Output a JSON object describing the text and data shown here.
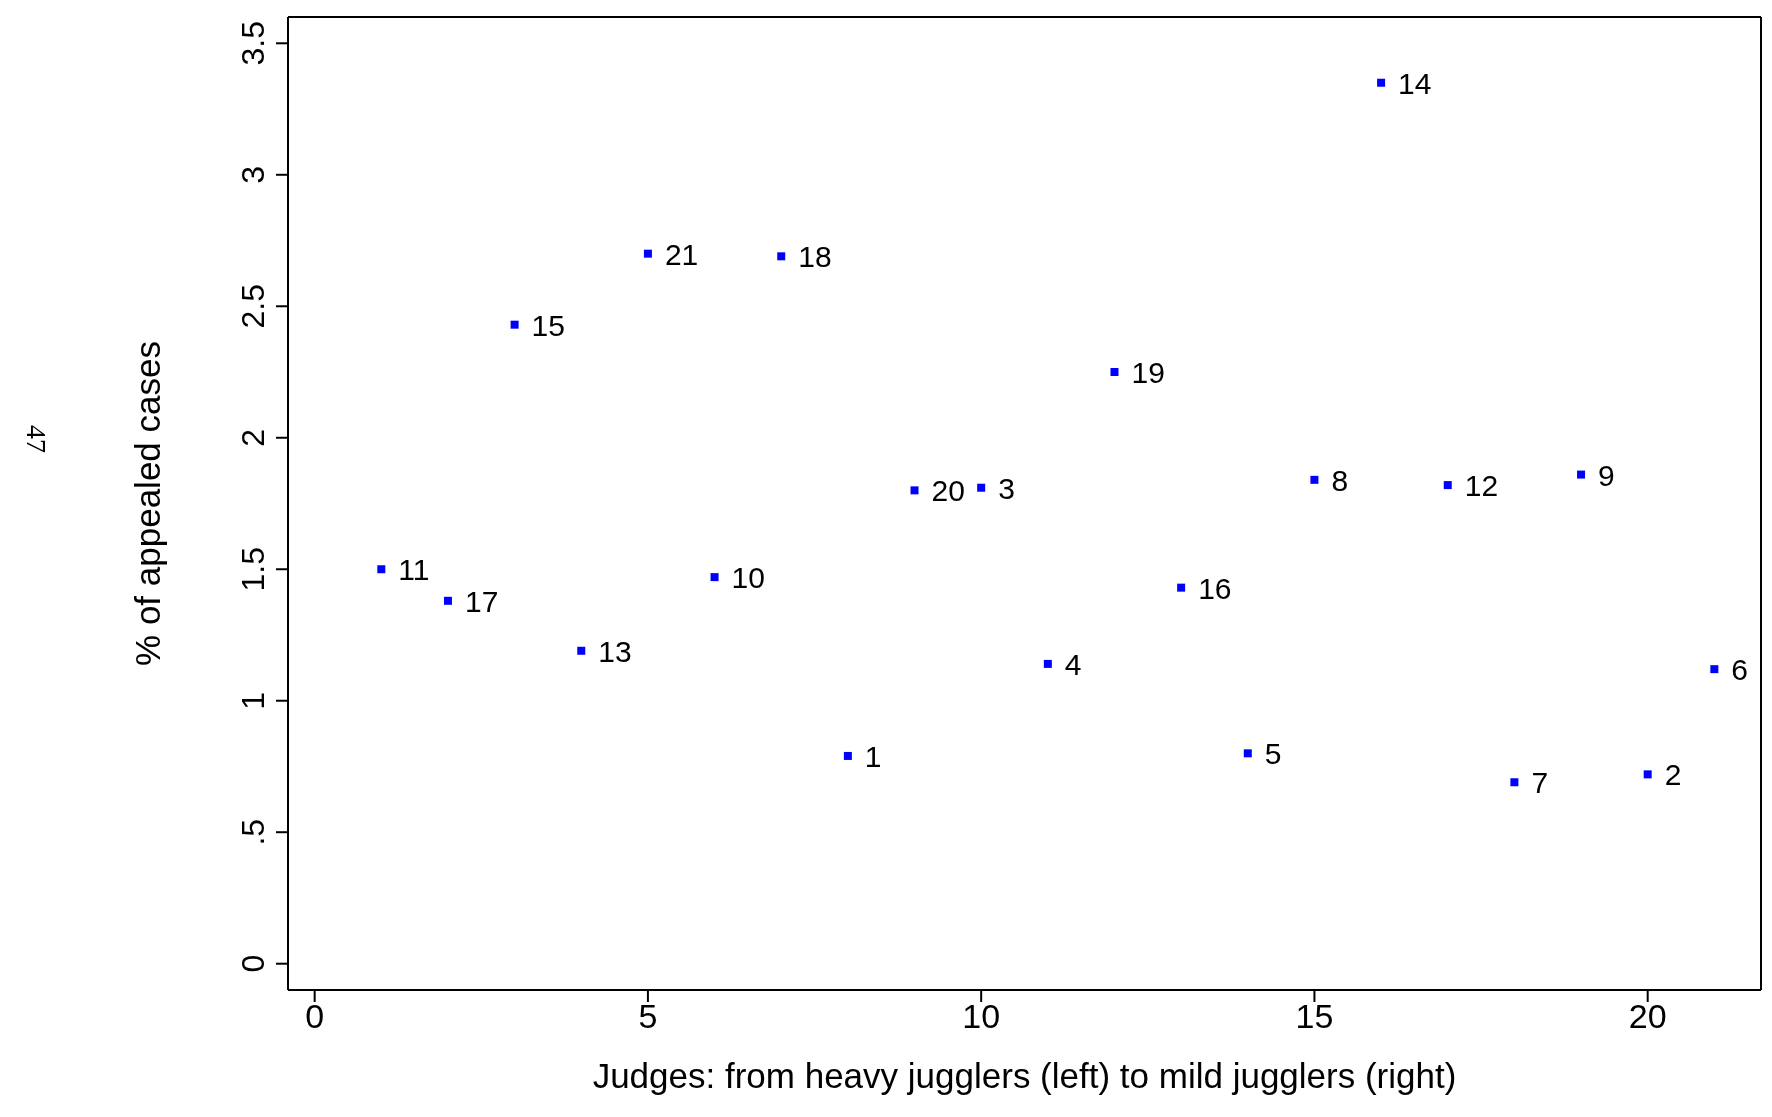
{
  "chart_data": {
    "type": "scatter",
    "xlabel": "Judges: from heavy jugglers (left) to mild jugglers (right)",
    "ylabel": "% of appealed cases",
    "annotations": [
      "47",
      {
        "text": "1",
        "x": 8,
        "y": 0.79
      },
      {
        "text": "2",
        "x": 20,
        "y": 0.72
      },
      {
        "text": "3",
        "x": 10,
        "y": 1.81
      },
      {
        "text": "4",
        "x": 11,
        "y": 1.14
      },
      {
        "text": "5",
        "x": 14,
        "y": 0.8
      },
      {
        "text": "6",
        "x": 21,
        "y": 1.12
      },
      {
        "text": "7",
        "x": 18,
        "y": 0.69
      },
      {
        "text": "8",
        "x": 15,
        "y": 1.84
      },
      {
        "text": "9",
        "x": 19,
        "y": 1.86
      },
      {
        "text": "10",
        "x": 6,
        "y": 1.47
      },
      {
        "text": "11",
        "x": 1,
        "y": 1.5
      },
      {
        "text": "12",
        "x": 17,
        "y": 1.82
      },
      {
        "text": "13",
        "x": 4,
        "y": 1.19
      },
      {
        "text": "14",
        "x": 16,
        "y": 3.35
      },
      {
        "text": "15",
        "x": 3,
        "y": 2.43
      },
      {
        "text": "16",
        "x": 13,
        "y": 1.43
      },
      {
        "text": "17",
        "x": 2,
        "y": 1.38
      },
      {
        "text": "18",
        "x": 7,
        "y": 2.69
      },
      {
        "text": "19",
        "x": 12,
        "y": 2.25
      },
      {
        "text": "20",
        "x": 9,
        "y": 1.8
      },
      {
        "text": "21",
        "x": 5,
        "y": 2.7
      }
    ],
    "x": [
      8,
      20,
      10,
      11,
      14,
      21,
      18,
      15,
      19,
      6,
      1,
      17,
      4,
      16,
      3,
      13,
      2,
      7,
      12,
      9,
      5
    ],
    "values": [
      0.79,
      0.72,
      1.81,
      1.14,
      0.8,
      1.12,
      0.69,
      1.84,
      1.86,
      1.47,
      1.5,
      1.82,
      1.19,
      3.35,
      2.43,
      1.43,
      1.38,
      2.69,
      2.25,
      1.8,
      2.7
    ],
    "color": "#0000ff",
    "marker": "square",
    "xlim": [
      -0.4,
      21.7
    ],
    "ylim": [
      -0.1,
      3.6
    ],
    "xticks": [
      0,
      5,
      10,
      15,
      20
    ],
    "yticks": [
      0,
      {
        "value": 0.5,
        "label": ".5"
      },
      1,
      1.5,
      2,
      2.5,
      3,
      3.5
    ]
  }
}
